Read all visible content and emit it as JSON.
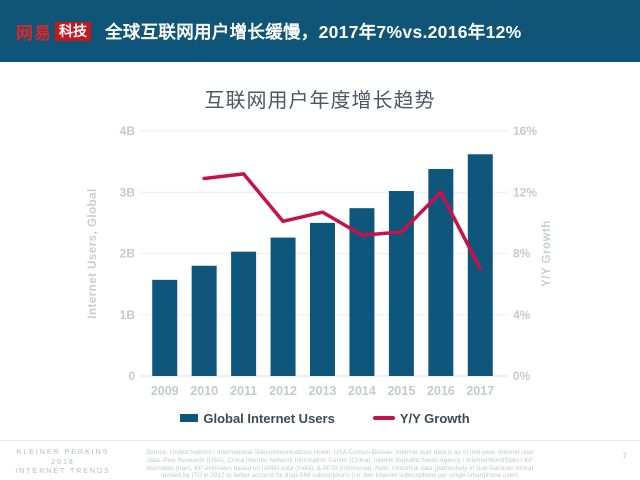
{
  "header": {
    "logo": {
      "brand": "网易",
      "badge": "科技"
    },
    "title": "全球互联网用户增长缓慢，2017年7%vs.2016年12%"
  },
  "chart_data": {
    "type": "bar",
    "title": "互联网用户年度增长趋势",
    "categories": [
      "2009",
      "2010",
      "2011",
      "2012",
      "2013",
      "2014",
      "2015",
      "2016",
      "2017"
    ],
    "series": [
      {
        "name": "Global Internet Users",
        "type": "bar",
        "axis": "left",
        "unit": "billions",
        "values": [
          1.57,
          1.8,
          2.03,
          2.26,
          2.5,
          2.74,
          3.02,
          3.38,
          3.62
        ],
        "color": "#0f567d"
      },
      {
        "name": "Y/Y Growth",
        "type": "line",
        "axis": "right",
        "unit": "percent",
        "values": [
          null,
          12.9,
          13.2,
          10.1,
          10.7,
          9.2,
          9.4,
          12,
          7
        ],
        "color": "#c8104b"
      }
    ],
    "left_axis": {
      "label": "Internet Users, Global",
      "ticks": [
        "0",
        "1B",
        "2B",
        "3B",
        "4B"
      ],
      "range": [
        0,
        4
      ]
    },
    "right_axis": {
      "label": "Y/Y Growth",
      "ticks": [
        "0%",
        "4%",
        "8%",
        "12%",
        "16%"
      ],
      "range": [
        0,
        16
      ]
    },
    "grid": true,
    "legend_position": "bottom"
  },
  "footer": {
    "branding_lines": [
      "KLEINER PERKINS",
      "2018",
      "INTERNET TRENDS"
    ],
    "source_lines": [
      "Source: United Nations / International Telecommunications Union, USA Census Bureau. Internet user data is as of mid-year. Internet user",
      "data: Pew Research (USA), China Internet Network Information Center (China), Islamic Republic News Agency / InternetWorldStats / KP",
      "estimates (Iran), KP estimates based on IAMAI data (India), & APJII (Indonesia). Note: Historical data (particularly in Sub-Saharan Africa)",
      "revised by ITU in 2017 to better account for dual-SIM subscriptions (i.e. two Internet subscriptions per single smartphone user)."
    ],
    "page_number": "7"
  },
  "colors": {
    "header_background": "#0f5577",
    "brand_red": "#c8161d",
    "bar": "#0f567d",
    "line": "#c8104b"
  }
}
